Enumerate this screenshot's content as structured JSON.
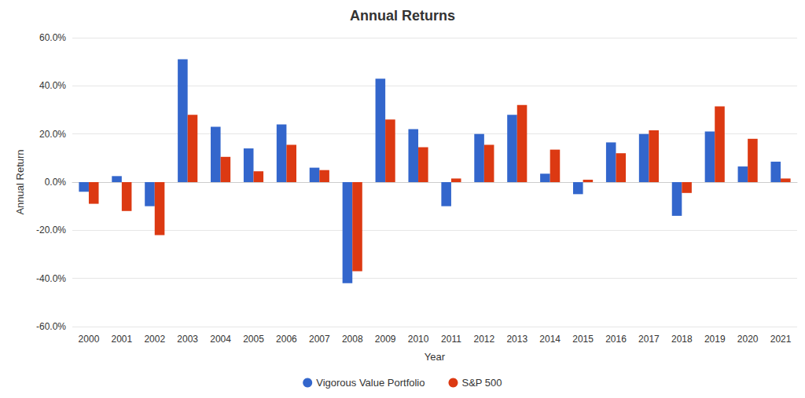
{
  "chart_data": {
    "type": "bar",
    "title": "Annual Returns",
    "x_label": "Year",
    "y_label": "Annual Return",
    "categories": [
      "2000",
      "2001",
      "2002",
      "2003",
      "2004",
      "2005",
      "2006",
      "2007",
      "2008",
      "2009",
      "2010",
      "2011",
      "2012",
      "2013",
      "2014",
      "2015",
      "2016",
      "2017",
      "2018",
      "2019",
      "2020",
      "2021"
    ],
    "series": [
      {
        "name": "Vigorous Value Portfolio",
        "color": "#3366cc",
        "values": [
          -4,
          2.5,
          -10,
          51,
          23,
          14,
          24,
          6,
          -42,
          43,
          22,
          -10,
          20,
          28,
          3.5,
          -5,
          16.5,
          20,
          -14,
          21,
          6.5,
          8.5
        ]
      },
      {
        "name": "S&P 500",
        "color": "#dc3912",
        "values": [
          -9,
          -12,
          -22,
          28,
          10.5,
          4.5,
          15.5,
          5,
          -37,
          26,
          14.5,
          1.5,
          15.5,
          32,
          13.5,
          1,
          12,
          21.5,
          -4.5,
          31.5,
          18,
          1.5
        ]
      }
    ],
    "ylim": [
      -60,
      60
    ],
    "yticks": [
      {
        "value": -60,
        "label": "-60.0%"
      },
      {
        "value": -40,
        "label": "-40.0%"
      },
      {
        "value": -20,
        "label": "-20.0%"
      },
      {
        "value": 0,
        "label": "0.0%"
      },
      {
        "value": 20,
        "label": "20.0%"
      },
      {
        "value": 40,
        "label": "40.0%"
      },
      {
        "value": 60,
        "label": "60.0%"
      }
    ],
    "grid": true,
    "legend": "bottom"
  }
}
